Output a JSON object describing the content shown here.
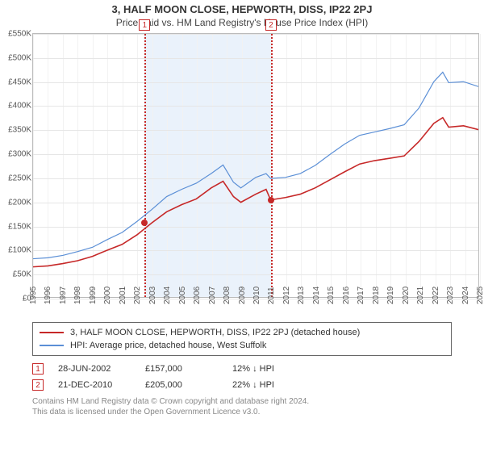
{
  "title": "3, HALF MOON CLOSE, HEPWORTH, DISS, IP22 2PJ",
  "subtitle": "Price paid vs. HM Land Registry's House Price Index (HPI)",
  "chart": {
    "type": "line",
    "background_color": "#ffffff",
    "grid_color": "#e6e6e6",
    "plot_border_color": "#bbbbbb",
    "ylim": [
      0,
      550000
    ],
    "ytick_step": 50000,
    "yticklabels": [
      "£0",
      "£50K",
      "£100K",
      "£150K",
      "£200K",
      "£250K",
      "£300K",
      "£350K",
      "£400K",
      "£450K",
      "£500K",
      "£550K"
    ],
    "xlim": [
      1995,
      2025
    ],
    "xtick_step": 1,
    "xticklabels": [
      "1995",
      "1996",
      "1997",
      "1998",
      "1999",
      "2000",
      "2001",
      "2002",
      "2003",
      "2004",
      "2005",
      "2006",
      "2007",
      "2008",
      "2009",
      "2010",
      "2011",
      "2012",
      "2013",
      "2014",
      "2015",
      "2016",
      "2017",
      "2018",
      "2019",
      "2020",
      "2021",
      "2022",
      "2023",
      "2024",
      "2025"
    ],
    "band": {
      "x_start": 2002.49,
      "x_end": 2010.97,
      "color": "#eaf2fb"
    },
    "label_fontsize": 10,
    "title_fontsize": 13,
    "subtitle_fontsize": 12,
    "series": [
      {
        "name": "HPI: Average price, detached house, West Suffolk",
        "color": "#5b8fd6",
        "line_width": 1.2,
        "data": [
          [
            1995,
            80000
          ],
          [
            1996,
            82000
          ],
          [
            1997,
            87000
          ],
          [
            1998,
            95000
          ],
          [
            1999,
            104000
          ],
          [
            2000,
            120000
          ],
          [
            2001,
            135000
          ],
          [
            2002,
            158000
          ],
          [
            2003,
            183000
          ],
          [
            2004,
            210000
          ],
          [
            2005,
            225000
          ],
          [
            2006,
            238000
          ],
          [
            2007,
            258000
          ],
          [
            2007.8,
            276000
          ],
          [
            2008.5,
            240000
          ],
          [
            2009,
            228000
          ],
          [
            2010,
            250000
          ],
          [
            2010.7,
            258000
          ],
          [
            2011,
            248000
          ],
          [
            2012,
            250000
          ],
          [
            2013,
            258000
          ],
          [
            2014,
            275000
          ],
          [
            2015,
            298000
          ],
          [
            2016,
            320000
          ],
          [
            2017,
            338000
          ],
          [
            2018,
            345000
          ],
          [
            2019,
            352000
          ],
          [
            2020,
            360000
          ],
          [
            2021,
            395000
          ],
          [
            2022,
            450000
          ],
          [
            2022.6,
            470000
          ],
          [
            2023,
            448000
          ],
          [
            2024,
            450000
          ],
          [
            2025,
            440000
          ]
        ]
      },
      {
        "name": "3, HALF MOON CLOSE, HEPWORTH, DISS, IP22 2PJ (detached house)",
        "color": "#c62828",
        "line_width": 1.6,
        "data": [
          [
            1995,
            63000
          ],
          [
            1996,
            65000
          ],
          [
            1997,
            70000
          ],
          [
            1998,
            76000
          ],
          [
            1999,
            85000
          ],
          [
            2000,
            98000
          ],
          [
            2001,
            110000
          ],
          [
            2002,
            130000
          ],
          [
            2003,
            155000
          ],
          [
            2004,
            178000
          ],
          [
            2005,
            193000
          ],
          [
            2006,
            205000
          ],
          [
            2007,
            228000
          ],
          [
            2007.8,
            242000
          ],
          [
            2008.5,
            210000
          ],
          [
            2009,
            198000
          ],
          [
            2010,
            215000
          ],
          [
            2010.7,
            225000
          ],
          [
            2011,
            203000
          ],
          [
            2012,
            208000
          ],
          [
            2013,
            215000
          ],
          [
            2014,
            228000
          ],
          [
            2015,
            245000
          ],
          [
            2016,
            262000
          ],
          [
            2017,
            278000
          ],
          [
            2018,
            285000
          ],
          [
            2019,
            290000
          ],
          [
            2020,
            295000
          ],
          [
            2021,
            325000
          ],
          [
            2022,
            363000
          ],
          [
            2022.6,
            375000
          ],
          [
            2023,
            355000
          ],
          [
            2024,
            358000
          ],
          [
            2025,
            350000
          ]
        ]
      }
    ],
    "markers": [
      {
        "x": 2002.49,
        "y": 157000,
        "color": "#c62828"
      },
      {
        "x": 2010.97,
        "y": 205000,
        "color": "#c62828"
      }
    ],
    "events": [
      {
        "num": "1",
        "date": "28-JUN-2002",
        "price": "£157,000",
        "delta": "12% ↓ HPI",
        "x": 2002.49
      },
      {
        "num": "2",
        "date": "21-DEC-2010",
        "price": "£205,000",
        "delta": "22% ↓ HPI",
        "x": 2010.97
      }
    ]
  },
  "legend": {
    "items": [
      {
        "label": "3, HALF MOON CLOSE, HEPWORTH, DISS, IP22 2PJ (detached house)",
        "color": "#c62828"
      },
      {
        "label": "HPI: Average price, detached house, West Suffolk",
        "color": "#5b8fd6"
      }
    ],
    "border_color": "#666666",
    "fontsize": 11
  },
  "footer": {
    "line1": "Contains HM Land Registry data © Crown copyright and database right 2024.",
    "line2": "This data is licensed under the Open Government Licence v3.0.",
    "color": "#888888",
    "fontsize": 10
  }
}
